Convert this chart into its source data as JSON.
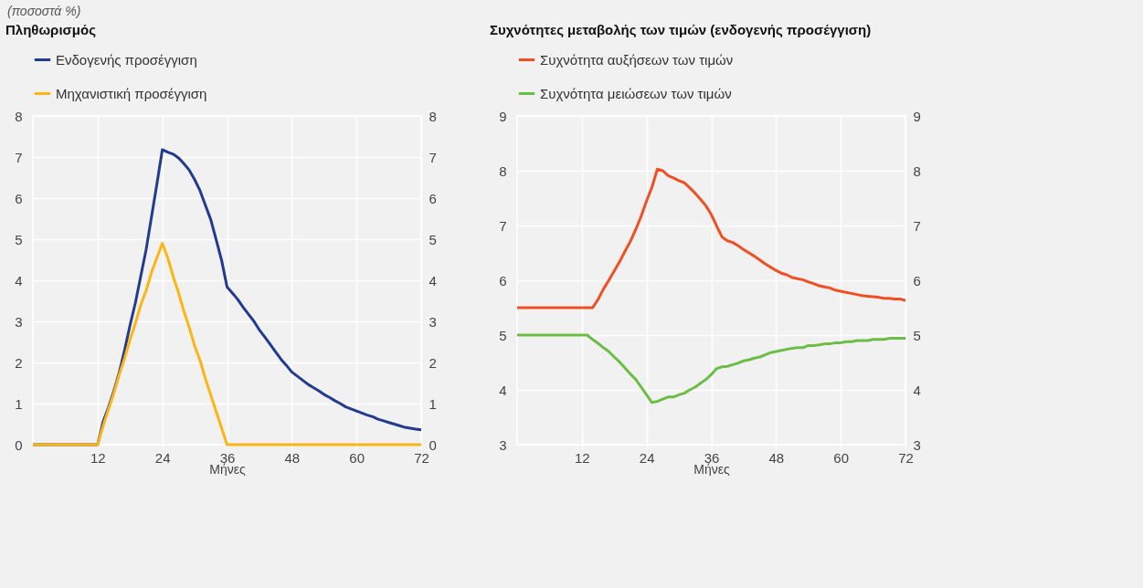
{
  "chart_data": [
    {
      "type": "line",
      "title": "Πληθωρισμός",
      "xlabel": "Μήνες",
      "annotations": [
        "(ποσοστά %)"
      ],
      "xlim": [
        0,
        72
      ],
      "xticks": [
        12,
        24,
        36,
        48,
        60,
        72
      ],
      "ylim": [
        0,
        8
      ],
      "yticks": [
        0,
        1,
        2,
        3,
        4,
        5,
        6,
        7,
        8
      ],
      "y2lim": [
        0,
        8
      ],
      "y2ticks": [
        0,
        1,
        2,
        3,
        4,
        5,
        6,
        7,
        8
      ],
      "grid": true,
      "legend": "top left",
      "line_style": "solid",
      "series": [
        {
          "name": "Ενδογενής προσέγγιση",
          "color": "#243a8f",
          "x": [
            0,
            12,
            13,
            14,
            15,
            16,
            17,
            18,
            19,
            20,
            21,
            22,
            23,
            24,
            25,
            26,
            27,
            28,
            29,
            30,
            31,
            32,
            33,
            34,
            35,
            36,
            37,
            38,
            39,
            40,
            41,
            42,
            43,
            44,
            45,
            46,
            47,
            48,
            49,
            50,
            51,
            52,
            53,
            54,
            55,
            56,
            57,
            58,
            59,
            60,
            61,
            62,
            63,
            64,
            65,
            66,
            67,
            68,
            69,
            70,
            71,
            72
          ],
          "values": [
            0,
            0,
            0.55,
            0.9,
            1.3,
            1.75,
            2.3,
            2.9,
            3.45,
            4.1,
            4.75,
            5.55,
            6.35,
            7.18,
            7.12,
            7.07,
            6.98,
            6.84,
            6.68,
            6.45,
            6.18,
            5.82,
            5.47,
            4.98,
            4.48,
            3.84,
            3.69,
            3.53,
            3.34,
            3.17,
            3.0,
            2.79,
            2.62,
            2.44,
            2.26,
            2.08,
            1.93,
            1.77,
            1.67,
            1.57,
            1.47,
            1.39,
            1.31,
            1.22,
            1.15,
            1.07,
            1.0,
            0.92,
            0.87,
            0.82,
            0.77,
            0.72,
            0.68,
            0.62,
            0.58,
            0.54,
            0.5,
            0.46,
            0.42,
            0.4,
            0.38,
            0.36
          ]
        },
        {
          "name": "Μηχανιστική προσέγγιση",
          "color": "#fbb514",
          "x": [
            0,
            12,
            13,
            14,
            15,
            16,
            17,
            18,
            19,
            20,
            21,
            22,
            23,
            24,
            25,
            26,
            27,
            28,
            29,
            30,
            31,
            32,
            33,
            34,
            35,
            36,
            72
          ],
          "values": [
            0,
            0,
            0.45,
            0.85,
            1.25,
            1.7,
            2.1,
            2.55,
            2.95,
            3.4,
            3.75,
            4.2,
            4.55,
            4.9,
            4.55,
            4.1,
            3.7,
            3.25,
            2.85,
            2.4,
            2.05,
            1.6,
            1.2,
            0.8,
            0.4,
            0,
            0
          ]
        }
      ]
    },
    {
      "type": "line",
      "title": "Συχνότητες μεταβολής των τιμών (ενδογενής προσέγγιση)",
      "xlabel": "Μήνες",
      "xlim": [
        0,
        72
      ],
      "xticks": [
        12,
        24,
        36,
        48,
        60,
        72
      ],
      "ylim": [
        3,
        9
      ],
      "yticks": [
        3,
        4,
        5,
        6,
        7,
        8,
        9
      ],
      "y2lim": [
        3,
        9
      ],
      "y2ticks": [
        3,
        4,
        5,
        6,
        7,
        8,
        9
      ],
      "grid": true,
      "legend": "top left",
      "line_style": "solid",
      "series": [
        {
          "name": "Συχνότητα αυξήσεων των τιμών",
          "color": "#f04e23",
          "x": [
            0,
            14,
            15,
            16,
            17,
            18,
            19,
            20,
            21,
            22,
            23,
            24,
            25,
            26,
            27,
            28,
            29,
            30,
            31,
            32,
            33,
            34,
            35,
            36,
            37,
            38,
            39,
            40,
            41,
            42,
            43,
            44,
            45,
            46,
            47,
            48,
            49,
            50,
            51,
            52,
            53,
            54,
            55,
            56,
            57,
            58,
            59,
            60,
            61,
            62,
            63,
            64,
            65,
            66,
            67,
            68,
            69,
            70,
            71,
            72
          ],
          "values": [
            5.5,
            5.5,
            5.65,
            5.84,
            6.0,
            6.17,
            6.34,
            6.53,
            6.71,
            6.93,
            7.17,
            7.45,
            7.7,
            8.03,
            8.0,
            7.91,
            7.87,
            7.82,
            7.78,
            7.69,
            7.59,
            7.48,
            7.36,
            7.2,
            6.99,
            6.79,
            6.72,
            6.69,
            6.63,
            6.56,
            6.5,
            6.44,
            6.37,
            6.3,
            6.24,
            6.18,
            6.13,
            6.1,
            6.05,
            6.03,
            6.01,
            5.97,
            5.94,
            5.9,
            5.88,
            5.86,
            5.82,
            5.8,
            5.78,
            5.76,
            5.74,
            5.72,
            5.71,
            5.7,
            5.69,
            5.67,
            5.67,
            5.66,
            5.66,
            5.63
          ]
        },
        {
          "name": "Συχνότητα μειώσεων των τιμών",
          "color": "#6cbd45",
          "x": [
            0,
            13,
            14,
            15,
            16,
            17,
            18,
            19,
            20,
            21,
            22,
            23,
            24,
            25,
            26,
            27,
            28,
            29,
            30,
            31,
            32,
            33,
            34,
            35,
            36,
            37,
            38,
            39,
            40,
            41,
            42,
            43,
            44,
            45,
            46,
            47,
            48,
            49,
            50,
            51,
            52,
            53,
            54,
            55,
            56,
            57,
            58,
            59,
            60,
            61,
            62,
            63,
            64,
            65,
            66,
            67,
            68,
            69,
            70,
            71,
            72
          ],
          "values": [
            5,
            5,
            4.92,
            4.85,
            4.77,
            4.7,
            4.6,
            4.51,
            4.4,
            4.29,
            4.19,
            4.05,
            3.91,
            3.77,
            3.79,
            3.83,
            3.87,
            3.87,
            3.91,
            3.94,
            4.0,
            4.05,
            4.12,
            4.19,
            4.28,
            4.39,
            4.42,
            4.43,
            4.46,
            4.49,
            4.53,
            4.55,
            4.58,
            4.6,
            4.64,
            4.68,
            4.7,
            4.72,
            4.74,
            4.76,
            4.77,
            4.77,
            4.81,
            4.81,
            4.82,
            4.84,
            4.84,
            4.86,
            4.86,
            4.88,
            4.88,
            4.9,
            4.9,
            4.9,
            4.92,
            4.92,
            4.92,
            4.94,
            4.94,
            4.94,
            4.94
          ]
        }
      ]
    }
  ]
}
